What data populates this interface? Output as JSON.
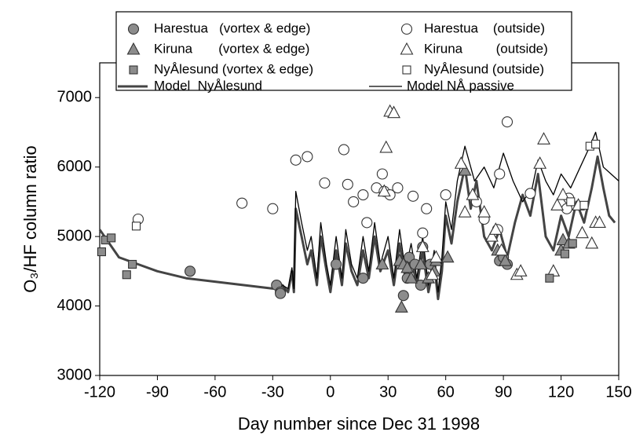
{
  "chart_data": {
    "type": "scatter",
    "x_label": "Day number since Dec 31 1998",
    "y_label": "O₃/HF column ratio",
    "xlim": [
      -120,
      150
    ],
    "xticks": [
      -120,
      -90,
      -60,
      -30,
      0,
      30,
      60,
      90,
      120,
      150
    ],
    "ylim": [
      3000,
      7500
    ],
    "yticks": [
      3000,
      4000,
      5000,
      6000,
      7000
    ],
    "series": [
      {
        "name": "Harestua   (vortex & edge)",
        "type": "scatter",
        "marker": "circle",
        "color": "#8c8c8c",
        "x": [
          -73,
          -28,
          -26,
          -26,
          3,
          17,
          38,
          40,
          41,
          44,
          47,
          48,
          52,
          88,
          90,
          92
        ],
        "values": [
          4500,
          4300,
          4200,
          4180,
          4600,
          4400,
          4150,
          4400,
          4700,
          4600,
          4300,
          4850,
          4600,
          4650,
          4700,
          4600
        ]
      },
      {
        "name": "Harestua    (outside)",
        "type": "scatter",
        "marker": "circle",
        "color": "#ffffff",
        "x": [
          -100,
          -46,
          -30,
          -18,
          -12,
          -3,
          7,
          9,
          12,
          17,
          19,
          24,
          27,
          28,
          31,
          35,
          43,
          48,
          50,
          60,
          76,
          80,
          87,
          88,
          92,
          104,
          123,
          124
        ],
        "values": [
          5250,
          5480,
          5400,
          6100,
          6150,
          5770,
          6250,
          5750,
          5500,
          5600,
          5200,
          5700,
          5900,
          5650,
          5600,
          5700,
          5580,
          5050,
          5400,
          5600,
          5500,
          5250,
          5100,
          5900,
          6650,
          5620,
          5400,
          5550
        ]
      },
      {
        "name": "Kiruna       (vortex & edge)",
        "type": "scatter",
        "marker": "triangle",
        "color": "#8c8c8c",
        "x": [
          27,
          36,
          37,
          38,
          40,
          42,
          47,
          51,
          54,
          55,
          61,
          70,
          87,
          91,
          120,
          121,
          124
        ],
        "values": [
          4600,
          4650,
          3980,
          4600,
          4550,
          4400,
          4600,
          4400,
          4500,
          4650,
          4700,
          5950,
          4800,
          4650,
          4800,
          4950,
          4900
        ]
      },
      {
        "name": "Kiruna         (outside)",
        "type": "scatter",
        "marker": "triangle",
        "color": "#ffffff",
        "x": [
          28,
          29,
          31,
          33,
          48,
          53,
          55,
          68,
          70,
          74,
          80,
          84,
          86,
          89,
          97,
          99,
          109,
          111,
          116,
          118,
          121,
          129,
          131,
          136,
          138,
          140
        ],
        "values": [
          5650,
          6280,
          6800,
          6780,
          4850,
          4450,
          4700,
          6050,
          5350,
          5600,
          5350,
          5000,
          5100,
          4800,
          4450,
          4500,
          6050,
          6400,
          4500,
          5450,
          5600,
          5450,
          5050,
          4900,
          5200,
          5200
        ]
      },
      {
        "name": "NyÅlesund (vortex & edge)",
        "type": "scatter",
        "marker": "square",
        "color": "#8c8c8c",
        "x": [
          -119,
          -117,
          -114,
          -106,
          -103,
          114,
          122,
          126
        ],
        "values": [
          4780,
          4950,
          4980,
          4450,
          4600,
          4400,
          4750,
          4900
        ]
      },
      {
        "name": "NyÅlesund (outside)",
        "type": "scatter",
        "marker": "square",
        "color": "#ffffff",
        "x": [
          -101,
          125,
          132,
          135,
          138
        ],
        "values": [
          5150,
          5500,
          5450,
          6300,
          6330
        ]
      },
      {
        "name": "Model  NyÅlesund",
        "type": "line",
        "color": "#444444",
        "line_width": 3,
        "x": [
          -120,
          -110,
          -100,
          -90,
          -75,
          -60,
          -45,
          -30,
          -25,
          -22,
          -20,
          -19,
          -18,
          -15,
          -12,
          -10,
          -7,
          -5,
          -2,
          0,
          3,
          6,
          8,
          11,
          14,
          17,
          20,
          23,
          26,
          30,
          33,
          36,
          39,
          42,
          45,
          48,
          51,
          54,
          56,
          58,
          60,
          63,
          66,
          70,
          73,
          76,
          80,
          84,
          88,
          92,
          96,
          100,
          104,
          108,
          112,
          116,
          120,
          124,
          128,
          132,
          136,
          139,
          142,
          145,
          148
        ],
        "values": [
          5100,
          4700,
          4600,
          4500,
          4400,
          4350,
          4300,
          4250,
          4300,
          4200,
          4500,
          4200,
          5400,
          5000,
          4600,
          4800,
          4300,
          5000,
          4500,
          4200,
          4800,
          4300,
          4900,
          4500,
          4300,
          4800,
          4400,
          5000,
          4500,
          4800,
          4300,
          4900,
          4400,
          4700,
          4300,
          4800,
          4200,
          4600,
          4100,
          4500,
          5300,
          4900,
          5500,
          6000,
          5400,
          5800,
          5000,
          4800,
          5100,
          4700,
          5200,
          5600,
          5300,
          5900,
          5000,
          4800,
          5300,
          5000,
          5500,
          5200,
          5700,
          6150,
          5700,
          5300,
          5200
        ]
      },
      {
        "name": "Model NÅ passive",
        "type": "line",
        "color": "#000000",
        "line_width": 1.3,
        "x": [
          -25,
          -22,
          -20,
          -19,
          -18,
          -15,
          -12,
          -10,
          -7,
          -5,
          -2,
          0,
          3,
          6,
          8,
          11,
          14,
          17,
          20,
          23,
          26,
          30,
          33,
          36,
          39,
          42,
          45,
          48,
          51,
          54,
          56,
          58,
          60,
          63,
          66,
          70,
          75,
          80,
          85,
          90,
          95,
          100,
          105,
          108,
          112,
          116,
          120,
          125,
          130,
          135,
          138,
          142,
          146,
          150
        ],
        "values": [
          4300,
          4250,
          4550,
          4250,
          5650,
          5200,
          4800,
          5000,
          4400,
          5200,
          4600,
          4300,
          5000,
          4400,
          5100,
          4600,
          4400,
          5000,
          4500,
          5200,
          4600,
          5000,
          4400,
          5100,
          4500,
          4900,
          4400,
          5000,
          4300,
          4800,
          4200,
          4700,
          5500,
          5100,
          5800,
          6300,
          5800,
          6000,
          5700,
          6200,
          5800,
          5500,
          5700,
          6100,
          5800,
          5600,
          5900,
          5700,
          6000,
          6300,
          6500,
          6000,
          5900,
          5800
        ]
      }
    ]
  }
}
